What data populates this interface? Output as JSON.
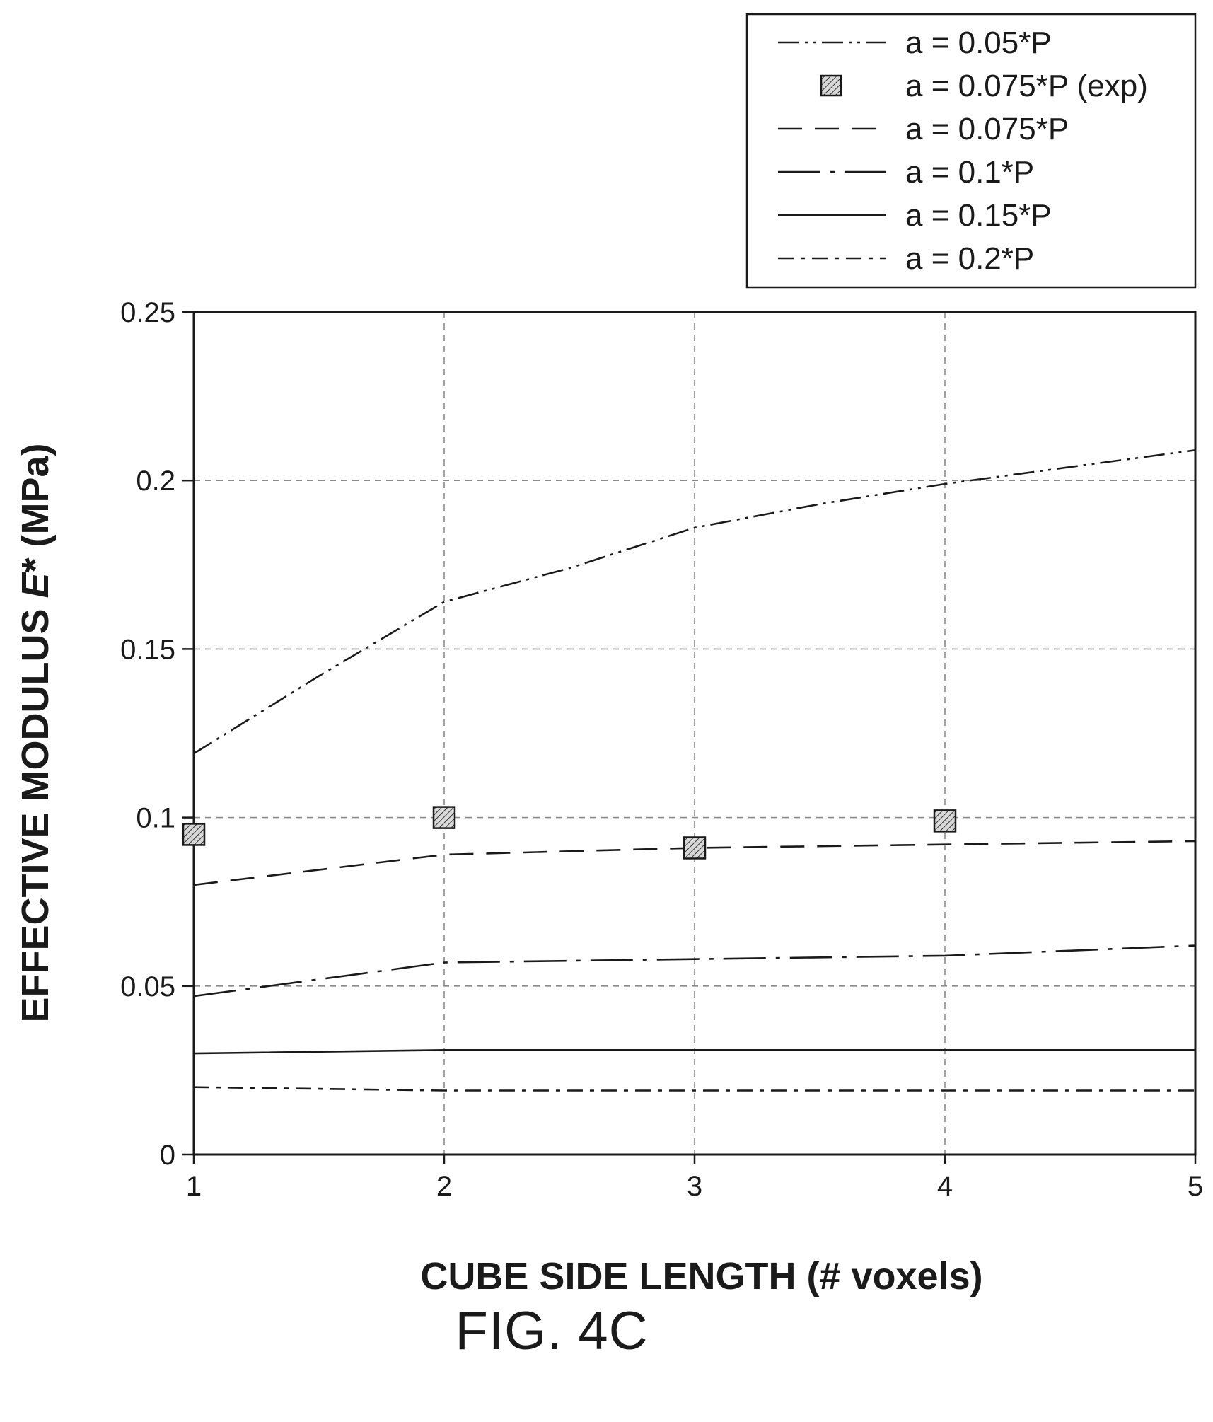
{
  "figure_label": "FIG. 4C",
  "chart_data": {
    "type": "line",
    "title": "",
    "xlabel": "CUBE SIDE LENGTH (# voxels)",
    "ylabel": {
      "prefix": "EFFECTIVE MODULUS ",
      "symbol": "E",
      "suffix": "* (MPa)"
    },
    "xlim": [
      1,
      5
    ],
    "ylim": [
      0,
      0.25
    ],
    "xticks": [
      1,
      2,
      3,
      4,
      5
    ],
    "xtick_labels": [
      "1",
      "2",
      "3",
      "4",
      "5"
    ],
    "yticks": [
      0,
      0.05,
      0.1,
      0.15,
      0.2,
      0.25
    ],
    "ytick_labels": [
      "0",
      "0.05",
      "0.1",
      "0.15",
      "0.2",
      "0.25"
    ],
    "grid": true,
    "legend_position": "top-right, above plot",
    "x": [
      1,
      2,
      3,
      4,
      5
    ],
    "series": [
      {
        "name": "a = 0.05*P",
        "style": "dash-dot-dot",
        "marker": "none",
        "x": [
          1,
          1.5,
          2,
          2.5,
          3,
          3.5,
          4,
          4.5,
          5
        ],
        "values": [
          0.119,
          0.142,
          0.164,
          0.174,
          0.186,
          0.193,
          0.199,
          0.204,
          0.209
        ]
      },
      {
        "name": "a = 0.075*P (exp)",
        "style": "none",
        "marker": "hatched-square",
        "x": [
          1,
          2,
          3,
          4
        ],
        "values": [
          0.095,
          0.1,
          0.091,
          0.099
        ]
      },
      {
        "name": "a = 0.075*P",
        "style": "long-dash",
        "marker": "none",
        "x": [
          1,
          2,
          3,
          4,
          5
        ],
        "values": [
          0.08,
          0.089,
          0.091,
          0.092,
          0.093
        ]
      },
      {
        "name": "a = 0.1*P",
        "style": "long-dash-dot",
        "marker": "none",
        "x": [
          1,
          2,
          3,
          4,
          5
        ],
        "values": [
          0.047,
          0.057,
          0.058,
          0.059,
          0.062
        ]
      },
      {
        "name": "a = 0.15*P",
        "style": "solid",
        "marker": "none",
        "x": [
          1,
          2,
          3,
          4,
          5
        ],
        "values": [
          0.03,
          0.031,
          0.031,
          0.031,
          0.031
        ]
      },
      {
        "name": "a = 0.2*P",
        "style": "dash-dot",
        "marker": "none",
        "x": [
          1,
          2,
          3,
          4,
          5
        ],
        "values": [
          0.02,
          0.019,
          0.019,
          0.019,
          0.019
        ]
      }
    ]
  }
}
